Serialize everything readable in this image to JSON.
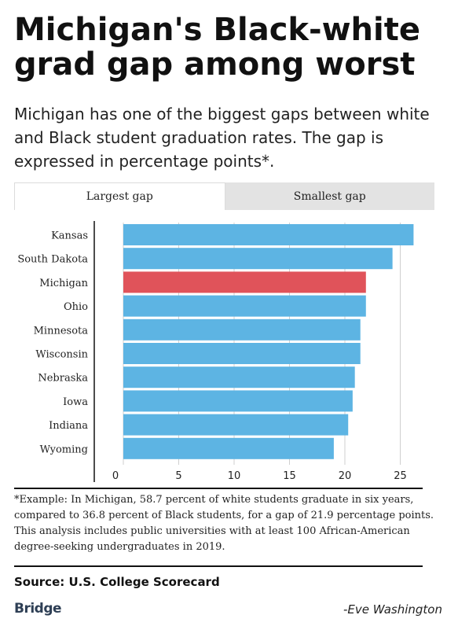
{
  "header": {
    "title": "Michigan's Black-white grad gap among worst",
    "subtitle": "Michigan has one of the biggest gaps between white and Black student graduation rates. The gap is expressed in percentage points*."
  },
  "tabs": [
    {
      "label": "Largest gap",
      "active": true
    },
    {
      "label": "Smallest gap",
      "active": false
    }
  ],
  "chart_data": {
    "type": "bar",
    "orientation": "horizontal",
    "categories": [
      "Kansas",
      "South Dakota",
      "Michigan",
      "Ohio",
      "Minnesota",
      "Wisconsin",
      "Nebraska",
      "Iowa",
      "Indiana",
      "Wyoming"
    ],
    "values": [
      26.2,
      24.3,
      21.9,
      21.9,
      21.4,
      21.4,
      20.9,
      20.7,
      20.3,
      19.0
    ],
    "highlight": "Michigan",
    "xlim": [
      0,
      27
    ],
    "xticks": [
      0,
      5,
      10,
      15,
      20,
      25
    ],
    "grid": true,
    "colors": {
      "bar": "#5db4e3",
      "highlight": "#e0535a",
      "grid": "#cfcfcf",
      "axis": "#111111"
    }
  },
  "footnote": "*Example: In Michigan, 58.7 percent of white students graduate in six years, compared to 36.8 percent of Black students, for a gap of 21.9 percentage points. This analysis includes public universities with at least 100 African-American degree-seeking undergraduates in 2019.",
  "source": "Source: U.S. College Scorecard",
  "logo": "Bridge",
  "credit": "-Eve Washington"
}
